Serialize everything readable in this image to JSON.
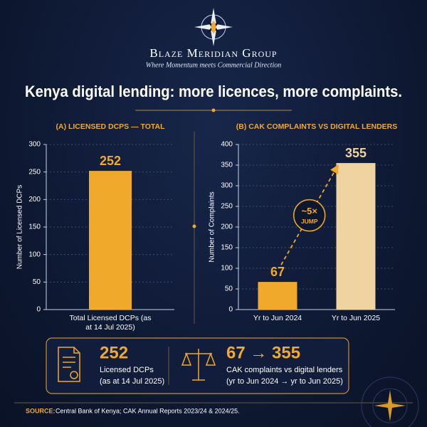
{
  "header": {
    "brand": "Blaze Meridian Group",
    "tagline": "Where Momentum meets Commercial Direction"
  },
  "title": "Kenya digital lending: more licences, more complaints.",
  "chart_data": [
    {
      "type": "bar",
      "title": "(A) LICENSED DCPS — TOTAL",
      "y_label": "Number of Licensed DCPs",
      "categories": [
        "Total Licensed DCPs (as at 14 Jul 2025)"
      ],
      "values": [
        252
      ],
      "colors": [
        "#f0a92b"
      ],
      "ylim": [
        0,
        300
      ],
      "yticks": [
        0,
        50,
        100,
        150,
        200,
        250,
        300
      ],
      "grid": true
    },
    {
      "type": "bar",
      "title": "(B) CAK COMPLAINTS VS DIGITAL LENDERS",
      "y_label": "Number of Complaints",
      "categories": [
        "Yr to Jun 2024",
        "Yr to Jun 2025"
      ],
      "values": [
        67,
        355
      ],
      "colors": [
        "#f0a92b",
        "#efd3a0"
      ],
      "ylim": [
        0,
        400
      ],
      "yticks": [
        0,
        50,
        100,
        150,
        200,
        250,
        300,
        350,
        400
      ],
      "grid": true,
      "annotation": {
        "text": "~5×",
        "subtext": "JUMP"
      }
    }
  ],
  "summary": [
    {
      "value": "252",
      "label": "Licensed DCPs",
      "note": "(as at 14 Jul 2025)"
    },
    {
      "value": "67 → 355",
      "label": "CAK complaints vs digital lenders",
      "note": "(yr to Jun 2024 → yr to Jun 2025)"
    }
  ],
  "source": {
    "label": "SOURCE:",
    "text": "Central Bank of Kenya; CAK Annual Reports 2023/24 & 2024/25."
  }
}
